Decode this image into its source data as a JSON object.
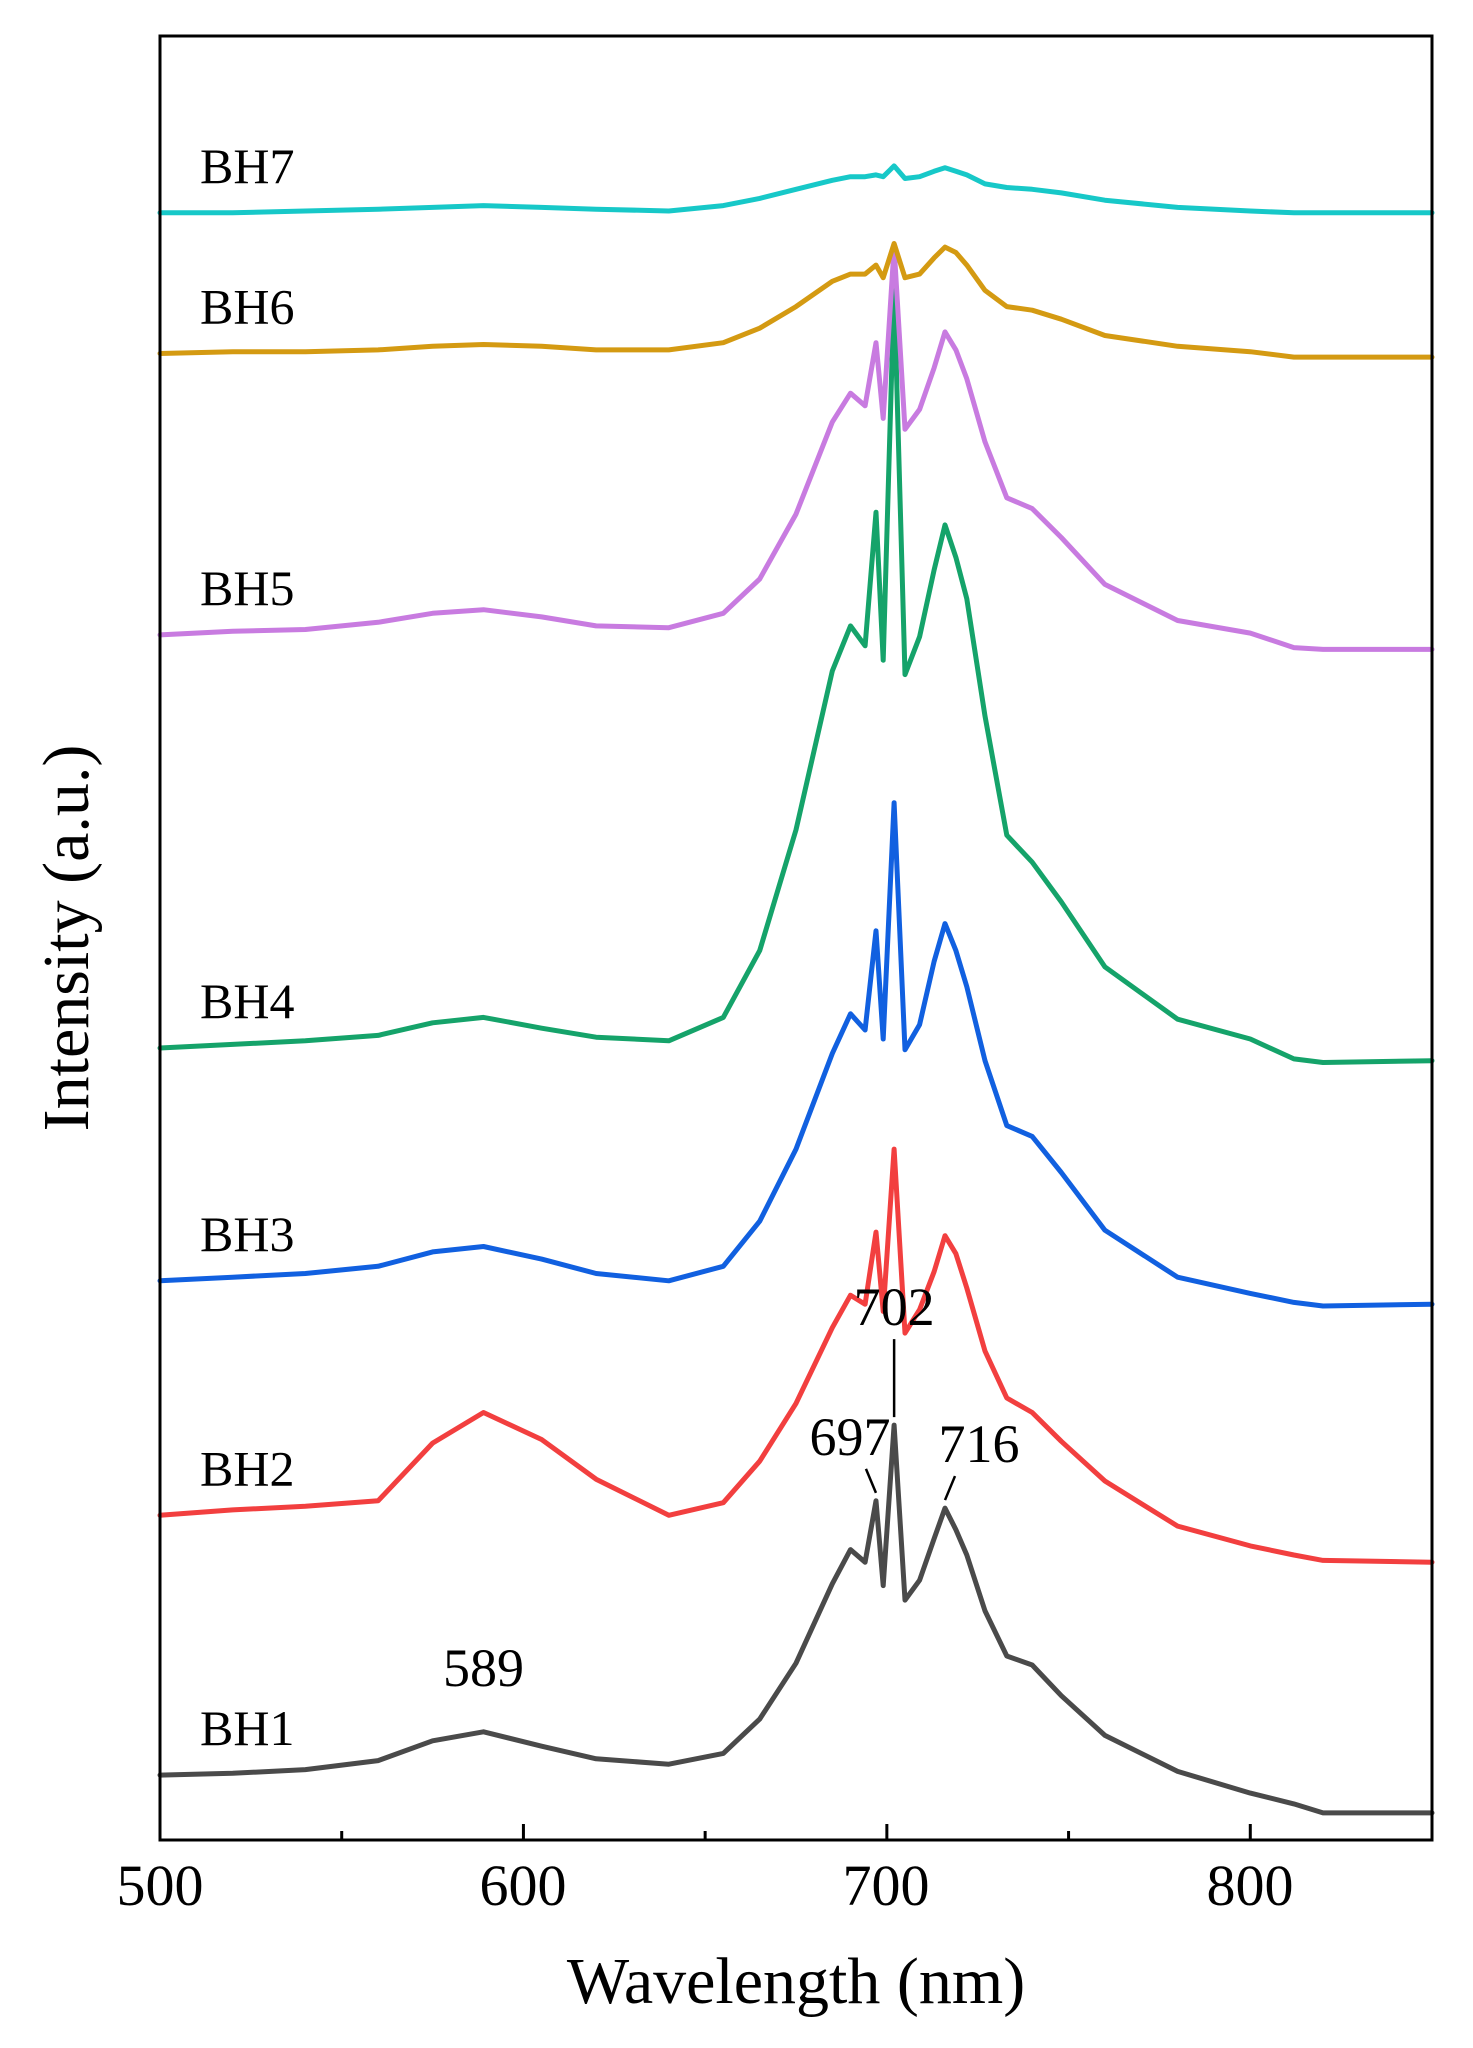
{
  "chart_data": {
    "type": "line",
    "title": "",
    "xlabel": "Wavelength (nm)",
    "ylabel": "Intensity (a.u.)",
    "xlim": [
      500,
      850
    ],
    "ylim": [
      0,
      1
    ],
    "y_ticks_labeled": false,
    "x_ticks": [
      500,
      600,
      700,
      800
    ],
    "x_tick_labels": [
      "500",
      "600",
      "700",
      "800"
    ],
    "grid": false,
    "legend": "inline labels at left of each trace",
    "series": [
      {
        "name": "BH1",
        "color": "#4a4a4a",
        "x": [
          500,
          520,
          540,
          560,
          575,
          589,
          605,
          620,
          640,
          655,
          665,
          675,
          685,
          690,
          694,
          697,
          699,
          702,
          705,
          709,
          713,
          716,
          719,
          722,
          727,
          733,
          740,
          748,
          760,
          780,
          800,
          812,
          820,
          850
        ],
        "y": [
          0.036,
          0.037,
          0.039,
          0.044,
          0.055,
          0.06,
          0.052,
          0.045,
          0.042,
          0.048,
          0.067,
          0.098,
          0.142,
          0.161,
          0.154,
          0.188,
          0.141,
          0.23,
          0.133,
          0.144,
          0.167,
          0.184,
          0.172,
          0.158,
          0.127,
          0.102,
          0.097,
          0.08,
          0.058,
          0.038,
          0.026,
          0.02,
          0.015,
          0.015
        ]
      },
      {
        "name": "BH2",
        "color": "#f23f3f",
        "x": [
          500,
          520,
          540,
          560,
          575,
          589,
          605,
          620,
          640,
          655,
          665,
          675,
          685,
          690,
          694,
          697,
          699,
          702,
          705,
          709,
          713,
          716,
          719,
          722,
          727,
          733,
          740,
          748,
          760,
          780,
          800,
          812,
          820,
          850
        ],
        "y": [
          0.18,
          0.183,
          0.185,
          0.188,
          0.22,
          0.237,
          0.222,
          0.2,
          0.18,
          0.187,
          0.21,
          0.242,
          0.284,
          0.302,
          0.297,
          0.337,
          0.293,
          0.383,
          0.281,
          0.294,
          0.315,
          0.335,
          0.325,
          0.306,
          0.271,
          0.245,
          0.237,
          0.221,
          0.199,
          0.174,
          0.163,
          0.158,
          0.155,
          0.154
        ]
      },
      {
        "name": "BH3",
        "color": "#1160e0",
        "x": [
          500,
          520,
          540,
          560,
          575,
          589,
          605,
          620,
          640,
          655,
          665,
          675,
          685,
          690,
          694,
          697,
          699,
          702,
          705,
          709,
          713,
          716,
          719,
          722,
          727,
          733,
          740,
          748,
          760,
          780,
          800,
          812,
          820,
          850
        ],
        "y": [
          0.31,
          0.312,
          0.314,
          0.318,
          0.326,
          0.329,
          0.322,
          0.314,
          0.31,
          0.318,
          0.343,
          0.383,
          0.436,
          0.458,
          0.449,
          0.504,
          0.444,
          0.575,
          0.438,
          0.452,
          0.487,
          0.508,
          0.493,
          0.473,
          0.432,
          0.396,
          0.39,
          0.37,
          0.338,
          0.312,
          0.303,
          0.298,
          0.296,
          0.297
        ]
      },
      {
        "name": "BH4",
        "color": "#15a36a",
        "x": [
          500,
          520,
          540,
          560,
          575,
          589,
          605,
          620,
          640,
          655,
          665,
          675,
          685,
          690,
          694,
          697,
          699,
          702,
          705,
          709,
          713,
          716,
          719,
          722,
          727,
          733,
          740,
          748,
          760,
          780,
          800,
          812,
          820,
          850
        ],
        "y": [
          0.439,
          0.441,
          0.443,
          0.446,
          0.453,
          0.456,
          0.45,
          0.445,
          0.443,
          0.456,
          0.493,
          0.56,
          0.648,
          0.673,
          0.662,
          0.736,
          0.654,
          0.86,
          0.646,
          0.667,
          0.704,
          0.729,
          0.711,
          0.688,
          0.623,
          0.557,
          0.542,
          0.52,
          0.484,
          0.455,
          0.444,
          0.433,
          0.431,
          0.432
        ]
      },
      {
        "name": "BH5",
        "color": "#c87be0",
        "x": [
          500,
          520,
          540,
          560,
          575,
          589,
          605,
          620,
          640,
          655,
          665,
          675,
          685,
          690,
          694,
          697,
          699,
          702,
          705,
          709,
          713,
          716,
          719,
          722,
          727,
          733,
          740,
          748,
          760,
          780,
          800,
          812,
          820,
          850
        ],
        "y": [
          0.668,
          0.67,
          0.671,
          0.675,
          0.68,
          0.682,
          0.678,
          0.673,
          0.672,
          0.68,
          0.699,
          0.735,
          0.786,
          0.802,
          0.795,
          0.83,
          0.788,
          0.883,
          0.782,
          0.793,
          0.816,
          0.836,
          0.826,
          0.81,
          0.775,
          0.744,
          0.738,
          0.722,
          0.696,
          0.676,
          0.669,
          0.661,
          0.66,
          0.66
        ]
      },
      {
        "name": "BH6",
        "color": "#d49a12",
        "x": [
          500,
          520,
          540,
          560,
          575,
          589,
          605,
          620,
          640,
          655,
          665,
          675,
          685,
          690,
          694,
          697,
          699,
          702,
          705,
          709,
          713,
          716,
          719,
          722,
          727,
          733,
          740,
          748,
          760,
          780,
          800,
          812,
          820,
          850
        ],
        "y": [
          0.824,
          0.825,
          0.825,
          0.826,
          0.828,
          0.829,
          0.828,
          0.826,
          0.826,
          0.83,
          0.838,
          0.85,
          0.864,
          0.868,
          0.868,
          0.873,
          0.866,
          0.885,
          0.866,
          0.868,
          0.877,
          0.883,
          0.88,
          0.873,
          0.859,
          0.85,
          0.848,
          0.843,
          0.834,
          0.828,
          0.825,
          0.822,
          0.822,
          0.822
        ]
      },
      {
        "name": "BH7",
        "color": "#17c8c8",
        "x": [
          500,
          520,
          540,
          560,
          575,
          589,
          605,
          620,
          640,
          655,
          665,
          675,
          685,
          690,
          694,
          697,
          699,
          702,
          705,
          709,
          713,
          716,
          719,
          722,
          727,
          733,
          740,
          748,
          760,
          780,
          800,
          812,
          820,
          850
        ],
        "y": [
          0.902,
          0.902,
          0.903,
          0.904,
          0.905,
          0.906,
          0.905,
          0.904,
          0.903,
          0.906,
          0.91,
          0.915,
          0.92,
          0.922,
          0.922,
          0.923,
          0.922,
          0.928,
          0.921,
          0.922,
          0.925,
          0.927,
          0.925,
          0.923,
          0.918,
          0.916,
          0.915,
          0.913,
          0.909,
          0.905,
          0.903,
          0.902,
          0.902,
          0.902
        ]
      }
    ],
    "annotations": [
      {
        "text": "589",
        "x": 589
      },
      {
        "text": "697",
        "x": 697
      },
      {
        "text": "702",
        "x": 702
      },
      {
        "text": "716",
        "x": 716
      }
    ]
  }
}
